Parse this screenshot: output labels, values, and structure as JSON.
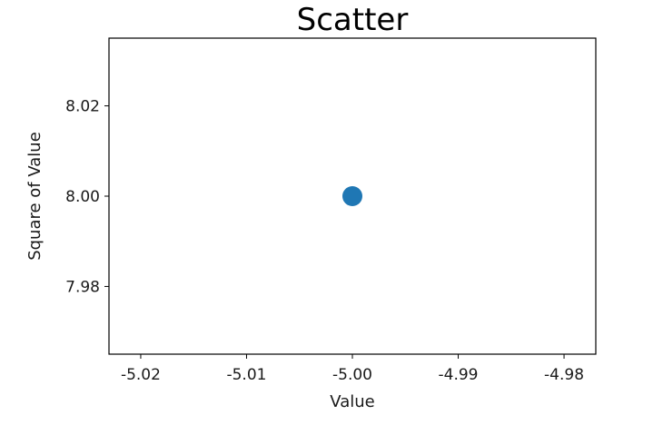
{
  "chart_data": {
    "type": "scatter",
    "title": "Scatter",
    "xlabel": "Value",
    "ylabel": "Square of Value",
    "xlim": [
      -5.023,
      -4.977
    ],
    "ylim": [
      7.965,
      8.035
    ],
    "xticks": [
      -5.02,
      -5.01,
      -5.0,
      -4.99,
      -4.98
    ],
    "xtick_labels": [
      "-5.02",
      "-5.01",
      "-5.00",
      "-4.99",
      "-4.98"
    ],
    "yticks": [
      7.98,
      8.0,
      8.02
    ],
    "ytick_labels": [
      "7.98",
      "8.00",
      "8.02"
    ],
    "grid": false,
    "series": [
      {
        "color": "#1f77b4",
        "points": [
          {
            "x": -5.0,
            "y": 8.0
          }
        ]
      }
    ]
  }
}
